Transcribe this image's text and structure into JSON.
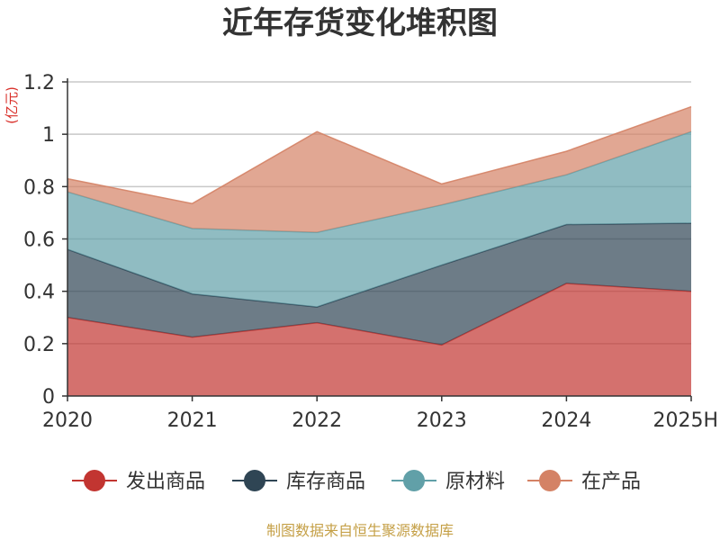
{
  "chart_data": {
    "type": "area",
    "stacked": true,
    "title": "近年存货变化堆积图",
    "ylabel": "(亿元)",
    "categories": [
      "2020",
      "2021",
      "2022",
      "2023",
      "2024",
      "2025H"
    ],
    "ylim": [
      0,
      1.2
    ],
    "yticks": [
      "0",
      "0.2",
      "0.4",
      "0.6",
      "0.8",
      "1",
      "1.2"
    ],
    "grid": true,
    "legend_position": "bottom",
    "series": [
      {
        "name": "发出商品",
        "color": "#c23531",
        "values": [
          0.3,
          0.225,
          0.28,
          0.195,
          0.43,
          0.4
        ]
      },
      {
        "name": "库存商品",
        "color": "#2f4554",
        "values": [
          0.26,
          0.165,
          0.06,
          0.305,
          0.225,
          0.26
        ]
      },
      {
        "name": "原材料",
        "color": "#61a0a8",
        "values": [
          0.22,
          0.25,
          0.285,
          0.23,
          0.19,
          0.35
        ]
      },
      {
        "name": "在产品",
        "color": "#d48265",
        "values": [
          0.05,
          0.095,
          0.385,
          0.08,
          0.09,
          0.095
        ]
      }
    ]
  },
  "footer": {
    "source": "制图数据来自恒生聚源数据库"
  }
}
